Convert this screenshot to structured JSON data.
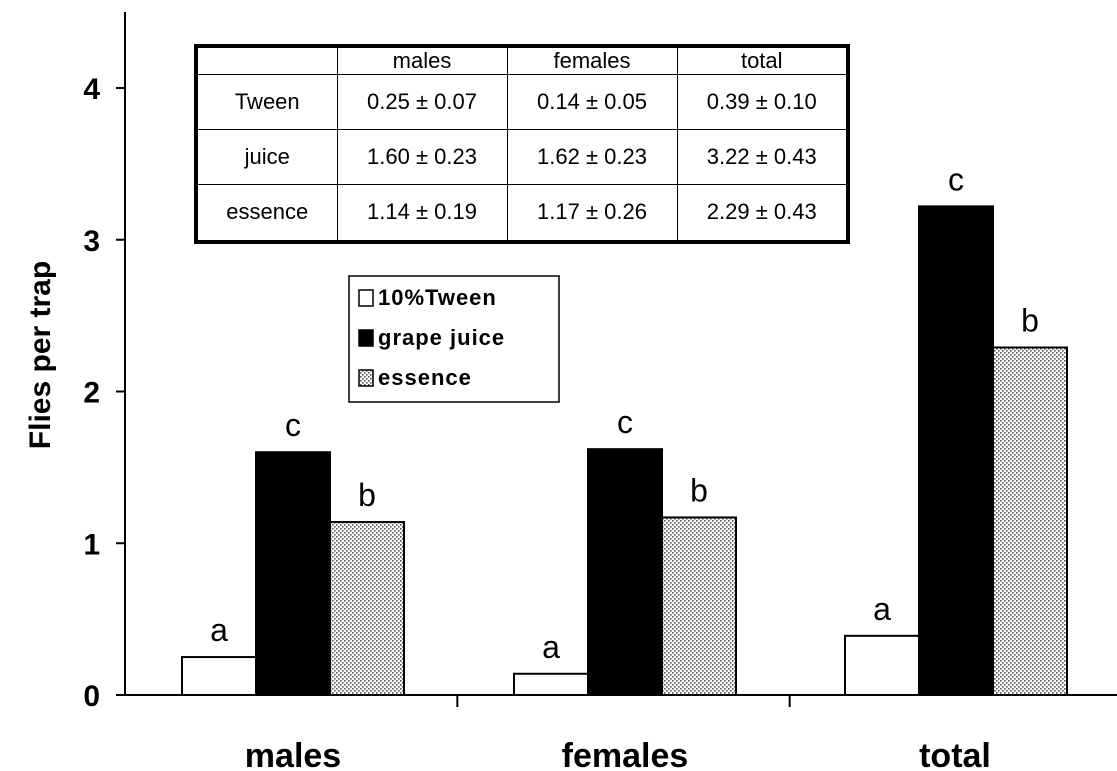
{
  "chart_data": {
    "type": "bar",
    "categories": [
      "males",
      "females",
      "total"
    ],
    "series": [
      {
        "name": "10%Tween",
        "values": [
          0.25,
          0.14,
          0.39
        ],
        "labels": [
          "a",
          "a",
          "a"
        ],
        "fill": "white"
      },
      {
        "name": "grape juice",
        "values": [
          1.6,
          1.62,
          3.22
        ],
        "labels": [
          "c",
          "c",
          "c"
        ],
        "fill": "black"
      },
      {
        "name": "essence",
        "values": [
          1.14,
          1.17,
          2.29
        ],
        "labels": [
          "b",
          "b",
          "b"
        ],
        "fill": "dotted"
      }
    ],
    "title": "",
    "xlabel": "",
    "ylabel": "Flies per trap",
    "ylim": [
      0,
      4
    ],
    "yticks": [
      "0",
      "1",
      "2",
      "3",
      "4"
    ],
    "grid": false,
    "legend_position": "upper-left",
    "colors": {
      "bar_outline": "#000000",
      "tween": "#ffffff",
      "juice": "#000000",
      "essence": "#e6e6e6"
    }
  },
  "table": {
    "header": [
      "",
      "males",
      "females",
      "total"
    ],
    "rows": [
      [
        "Tween",
        "0.25 ± 0.07",
        "0.14 ± 0.05",
        "0.39 ± 0.10"
      ],
      [
        "juice",
        "1.60 ± 0.23",
        "1.62 ± 0.23",
        "3.22 ± 0.43"
      ],
      [
        "essence",
        "1.14 ± 0.19",
        "1.17 ± 0.26",
        "2.29 ± 0.43"
      ]
    ]
  }
}
